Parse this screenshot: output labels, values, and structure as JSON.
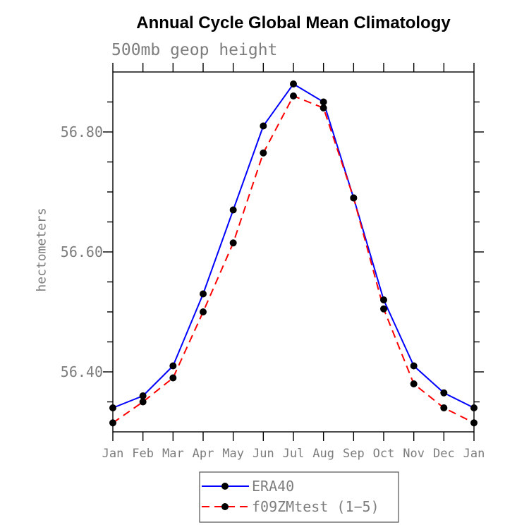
{
  "window": {
    "title": "Annual Cycle Global Mean Climatology"
  },
  "colors": {
    "era40_line": "#0000ff",
    "f09zmtest_line": "#ff0000",
    "marker": "#000000",
    "axis": "#000000",
    "label_text": "#7d7d7d",
    "title_text": "#000000",
    "background": "#ffffff"
  },
  "legend": {
    "position": "bottom-center",
    "items": [
      {
        "label": "ERA40",
        "line_style": "solid",
        "color": "#0000ff",
        "marker": "filled-circle"
      },
      {
        "label": "f09ZMtest (1−5)",
        "line_style": "dashed",
        "color": "#ff0000",
        "marker": "filled-circle"
      }
    ]
  },
  "chart_data": {
    "type": "line",
    "title": "Annual Cycle Global Mean Climatology",
    "subtitle": "500mb geop height",
    "xlabel": "",
    "ylabel": "hectometers",
    "x_tick_labels": [
      "Jan",
      "Feb",
      "Mar",
      "Apr",
      "May",
      "Jun",
      "Jul",
      "Aug",
      "Sep",
      "Oct",
      "Nov",
      "Dec",
      "Jan"
    ],
    "ylim": [
      56.3,
      56.9
    ],
    "y_major_ticks": [
      56.4,
      56.6,
      56.8
    ],
    "y_major_tick_labels": [
      "56.40",
      "56.60",
      "56.80"
    ],
    "y_minor_step": 0.05,
    "grid": "off",
    "ticks": "outward-all-sides",
    "legend_position": "bottom",
    "series": [
      {
        "name": "ERA40",
        "color": "#0000ff",
        "style": "solid",
        "marker": "circle",
        "values": [
          56.34,
          56.36,
          56.41,
          56.53,
          56.67,
          56.81,
          56.88,
          56.85,
          56.69,
          56.52,
          56.41,
          56.365,
          56.34
        ]
      },
      {
        "name": "f09ZMtest (1−5)",
        "color": "#ff0000",
        "style": "dashed",
        "marker": "circle",
        "values": [
          56.315,
          56.35,
          56.39,
          56.5,
          56.615,
          56.765,
          56.86,
          56.84,
          56.69,
          56.505,
          56.38,
          56.34,
          56.315
        ]
      }
    ]
  }
}
